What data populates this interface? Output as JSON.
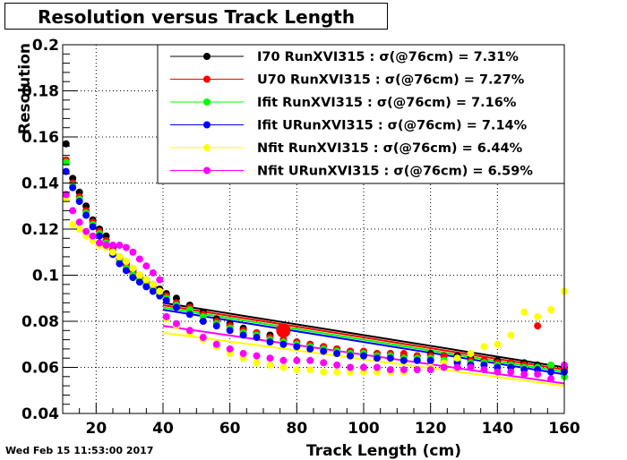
{
  "title": "Resolution versus Track Length",
  "timestamp": "Wed Feb 15 11:53:00 2017",
  "chart_data": {
    "type": "scatter",
    "xlabel": "Track Length (cm)",
    "ylabel": "Resolution",
    "xlim": [
      10,
      160
    ],
    "ylim": [
      0.04,
      0.2
    ],
    "x_ticks": [
      20,
      40,
      60,
      80,
      100,
      120,
      140,
      160
    ],
    "y_ticks": [
      0.04,
      0.06,
      0.08,
      0.1,
      0.12,
      0.14,
      0.16,
      0.18,
      0.2
    ],
    "x_tick_labels": [
      "20",
      "40",
      "60",
      "80",
      "100",
      "120",
      "140",
      "160"
    ],
    "y_tick_labels": [
      "0.04",
      "0.06",
      "0.08",
      "0.1",
      "0.12",
      "0.14",
      "0.16",
      "0.18",
      "0.2"
    ],
    "grid": true,
    "legend_position": "top-right",
    "highlight_point": {
      "x": 76,
      "y": 0.076,
      "color": "#ff0000"
    },
    "series": [
      {
        "name": "I70  RunXVI315 : σ(@76cm) =  7.31%",
        "color": "#000000",
        "x": [
          11,
          13,
          15,
          17,
          19,
          21,
          23,
          25,
          27,
          29,
          31,
          33,
          35,
          37,
          39,
          41,
          44,
          48,
          52,
          56,
          60,
          64,
          68,
          72,
          76,
          80,
          84,
          88,
          92,
          96,
          100,
          104,
          108,
          112,
          116,
          120,
          124,
          128,
          132,
          136,
          140,
          144,
          148,
          152,
          156,
          160
        ],
        "y": [
          0.157,
          0.142,
          0.136,
          0.13,
          0.124,
          0.12,
          0.117,
          0.112,
          0.108,
          0.105,
          0.102,
          0.1,
          0.098,
          0.096,
          0.094,
          0.092,
          0.09,
          0.087,
          0.084,
          0.081,
          0.079,
          0.077,
          0.075,
          0.074,
          0.072,
          0.071,
          0.07,
          0.069,
          0.068,
          0.067,
          0.066,
          0.066,
          0.066,
          0.065,
          0.065,
          0.066,
          0.065,
          0.065,
          0.064,
          0.063,
          0.063,
          0.062,
          0.062,
          0.061,
          0.06,
          0.06
        ],
        "fit": {
          "x": [
            40,
            160
          ],
          "y": [
            0.088,
            0.06
          ]
        }
      },
      {
        "name": "U70  RunXVI315 : σ(@76cm) =  7.27%",
        "color": "#ff0000",
        "x": [
          11,
          13,
          15,
          17,
          19,
          21,
          23,
          25,
          27,
          29,
          31,
          33,
          35,
          37,
          39,
          41,
          44,
          48,
          52,
          56,
          60,
          64,
          68,
          72,
          76,
          80,
          84,
          88,
          92,
          96,
          100,
          104,
          108,
          112,
          116,
          120,
          124,
          128,
          132,
          136,
          140,
          144,
          148,
          152,
          156,
          160
        ],
        "y": [
          0.15,
          0.14,
          0.134,
          0.128,
          0.123,
          0.119,
          0.115,
          0.111,
          0.107,
          0.104,
          0.101,
          0.099,
          0.097,
          0.095,
          0.093,
          0.091,
          0.088,
          0.086,
          0.083,
          0.08,
          0.078,
          0.076,
          0.075,
          0.073,
          0.072,
          0.071,
          0.07,
          0.069,
          0.068,
          0.067,
          0.067,
          0.066,
          0.066,
          0.066,
          0.065,
          0.065,
          0.065,
          0.064,
          0.063,
          0.063,
          0.062,
          0.062,
          0.061,
          0.078,
          0.06,
          0.059
        ],
        "fit": {
          "x": [
            40,
            160
          ],
          "y": [
            0.087,
            0.059
          ]
        }
      },
      {
        "name": "Ifit RunXVI315 : σ(@76cm) =  7.16%",
        "color": "#00ff00",
        "x": [
          11,
          13,
          15,
          17,
          19,
          21,
          23,
          25,
          27,
          29,
          31,
          33,
          35,
          37,
          39,
          41,
          44,
          48,
          52,
          56,
          60,
          64,
          68,
          72,
          76,
          80,
          84,
          88,
          92,
          96,
          100,
          104,
          108,
          112,
          116,
          120,
          124,
          128,
          132,
          136,
          140,
          144,
          148,
          152,
          156,
          160
        ],
        "y": [
          0.149,
          0.139,
          0.133,
          0.127,
          0.122,
          0.118,
          0.114,
          0.11,
          0.106,
          0.103,
          0.1,
          0.098,
          0.096,
          0.094,
          0.092,
          0.09,
          0.087,
          0.085,
          0.082,
          0.079,
          0.077,
          0.075,
          0.074,
          0.072,
          0.071,
          0.07,
          0.069,
          0.068,
          0.067,
          0.066,
          0.066,
          0.065,
          0.065,
          0.064,
          0.064,
          0.064,
          0.063,
          0.063,
          0.062,
          0.062,
          0.061,
          0.061,
          0.06,
          0.06,
          0.061,
          0.056
        ],
        "fit": {
          "x": [
            40,
            160
          ],
          "y": [
            0.086,
            0.058
          ]
        }
      },
      {
        "name": "Ifit URunXVI315 : σ(@76cm) =  7.14%",
        "color": "#0000ff",
        "x": [
          11,
          13,
          15,
          17,
          19,
          21,
          23,
          25,
          27,
          29,
          31,
          33,
          35,
          37,
          39,
          41,
          44,
          48,
          52,
          56,
          60,
          64,
          68,
          72,
          76,
          80,
          84,
          88,
          92,
          96,
          100,
          104,
          108,
          112,
          116,
          120,
          124,
          128,
          132,
          136,
          140,
          144,
          148,
          152,
          156,
          160
        ],
        "y": [
          0.145,
          0.138,
          0.132,
          0.126,
          0.121,
          0.117,
          0.113,
          0.109,
          0.105,
          0.102,
          0.099,
          0.097,
          0.095,
          0.093,
          0.091,
          0.089,
          0.086,
          0.083,
          0.08,
          0.078,
          0.076,
          0.074,
          0.073,
          0.071,
          0.07,
          0.069,
          0.068,
          0.067,
          0.066,
          0.065,
          0.065,
          0.064,
          0.064,
          0.063,
          0.063,
          0.063,
          0.062,
          0.062,
          0.061,
          0.061,
          0.06,
          0.06,
          0.059,
          0.059,
          0.058,
          0.058
        ],
        "fit": {
          "x": [
            40,
            160
          ],
          "y": [
            0.085,
            0.057
          ]
        }
      },
      {
        "name": "Nfit RunXVI315 : σ(@76cm) =  6.44%",
        "color": "#ffff00",
        "x": [
          11,
          13,
          15,
          17,
          19,
          21,
          23,
          25,
          27,
          29,
          31,
          33,
          35,
          37,
          39,
          41,
          44,
          48,
          52,
          56,
          60,
          64,
          68,
          72,
          76,
          80,
          84,
          88,
          92,
          96,
          100,
          104,
          108,
          112,
          116,
          120,
          124,
          128,
          132,
          136,
          140,
          144,
          148,
          152,
          156,
          160
        ],
        "y": [
          0.133,
          0.122,
          0.12,
          0.117,
          0.115,
          0.113,
          0.112,
          0.11,
          0.108,
          0.106,
          0.103,
          0.1,
          0.098,
          0.096,
          0.093,
          0.081,
          0.078,
          0.075,
          0.072,
          0.069,
          0.066,
          0.064,
          0.062,
          0.061,
          0.06,
          0.059,
          0.059,
          0.058,
          0.058,
          0.058,
          0.058,
          0.058,
          0.058,
          0.058,
          0.059,
          0.06,
          0.062,
          0.064,
          0.066,
          0.069,
          0.07,
          0.074,
          0.084,
          0.082,
          0.085,
          0.093
        ],
        "fit": {
          "x": [
            40,
            160
          ],
          "y": [
            0.075,
            0.052
          ]
        }
      },
      {
        "name": "Nfit URunXVI315 : σ(@76cm) =  6.59%",
        "color": "#ff00ff",
        "x": [
          11,
          13,
          15,
          17,
          19,
          21,
          23,
          25,
          27,
          29,
          31,
          33,
          35,
          37,
          39,
          41,
          44,
          48,
          52,
          56,
          60,
          64,
          68,
          72,
          76,
          80,
          84,
          88,
          92,
          96,
          100,
          104,
          108,
          112,
          116,
          120,
          124,
          128,
          132,
          136,
          140,
          144,
          148,
          152,
          156,
          160
        ],
        "y": [
          0.135,
          0.128,
          0.123,
          0.119,
          0.117,
          0.114,
          0.113,
          0.113,
          0.113,
          0.112,
          0.11,
          0.107,
          0.104,
          0.101,
          0.098,
          0.082,
          0.079,
          0.076,
          0.073,
          0.07,
          0.068,
          0.066,
          0.065,
          0.064,
          0.063,
          0.063,
          0.063,
          0.062,
          0.061,
          0.06,
          0.06,
          0.06,
          0.059,
          0.059,
          0.059,
          0.059,
          0.06,
          0.06,
          0.06,
          0.059,
          0.058,
          0.058,
          0.057,
          0.057,
          0.055,
          0.061
        ],
        "fit": {
          "x": [
            40,
            160
          ],
          "y": [
            0.078,
            0.053
          ]
        }
      }
    ]
  }
}
